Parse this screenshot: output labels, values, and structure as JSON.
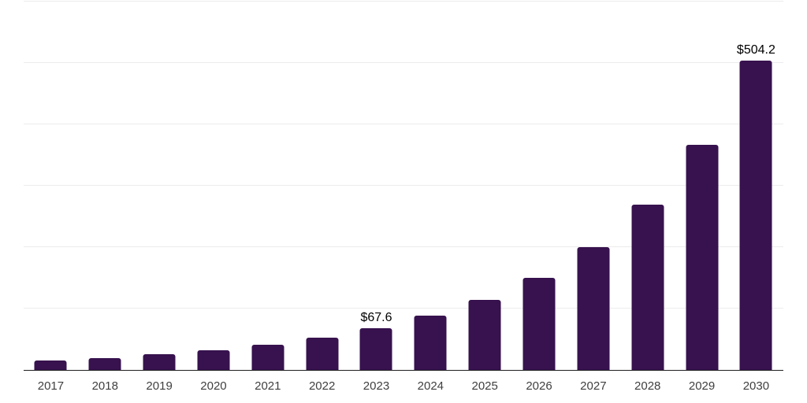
{
  "chart_data": {
    "type": "bar",
    "categories": [
      "2017",
      "2018",
      "2019",
      "2020",
      "2021",
      "2022",
      "2023",
      "2024",
      "2025",
      "2026",
      "2027",
      "2028",
      "2029",
      "2030"
    ],
    "values": [
      15,
      18.5,
      25,
      32,
      40,
      51.5,
      67.6,
      88,
      113,
      150,
      200,
      269,
      366,
      504.2
    ],
    "labeled_points": [
      {
        "category": "2023",
        "label": "$67.6"
      },
      {
        "category": "2030",
        "label": "$504.2"
      }
    ],
    "value_prefix": "$",
    "ylim": [
      0,
      600
    ],
    "grid_step": 100,
    "grid": true,
    "legend": false,
    "y_axis_labels_visible": false,
    "colors": {
      "bar": "#37124e",
      "gridline": "#ececec",
      "axis": "#1f1f1f",
      "tick_label": "#3f3f3f",
      "data_label": "#000000",
      "background": "#ffffff"
    }
  }
}
